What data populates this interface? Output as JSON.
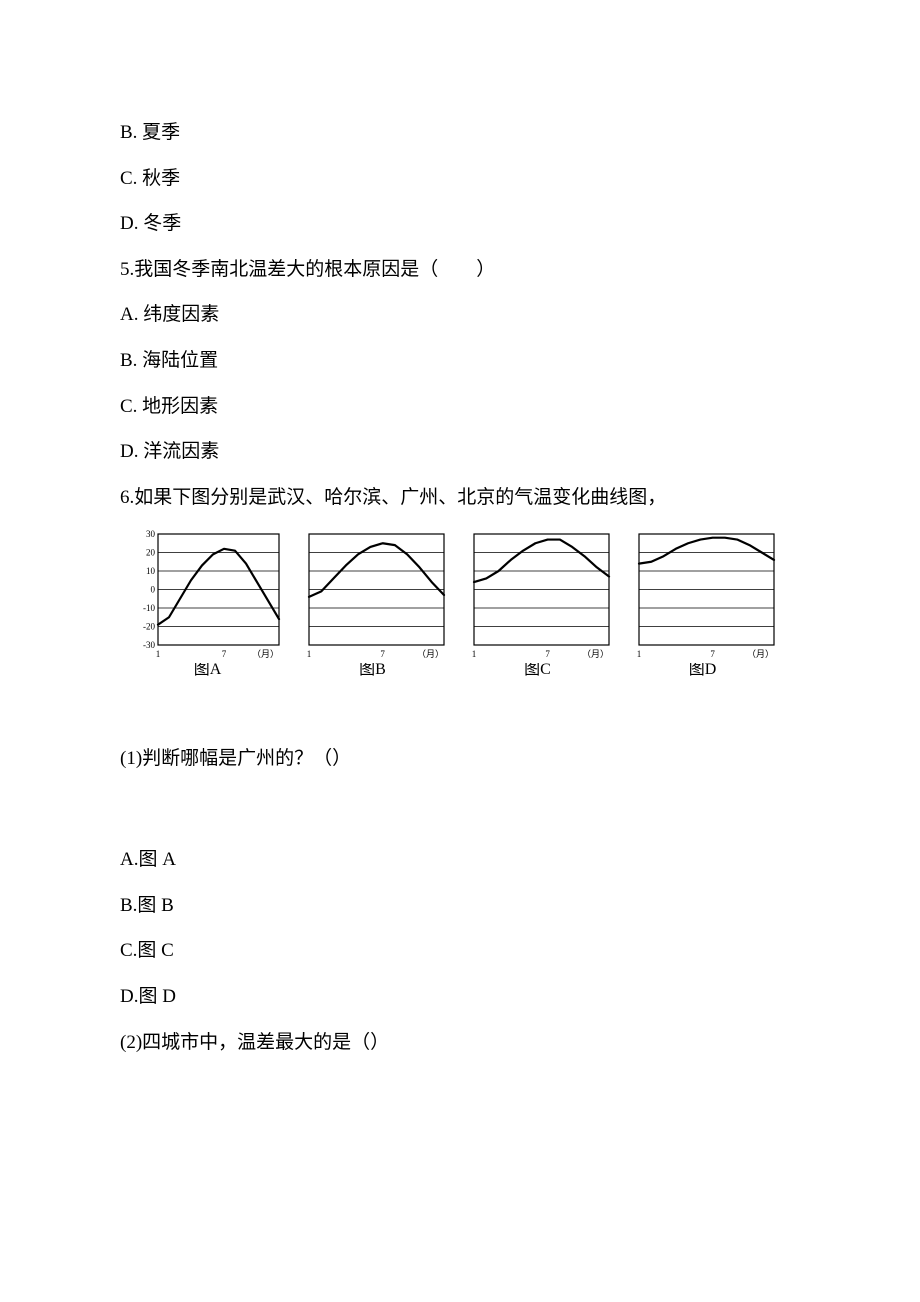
{
  "q4_options": {
    "b": "B. 夏季",
    "c": "C. 秋季",
    "d": "D. 冬季"
  },
  "q5": {
    "stem": "5.我国冬季南北温差大的根本原因是（　　）",
    "a": "A. 纬度因素",
    "b": "B. 海陆位置",
    "c": "C. 地形因素",
    "d": "D. 洋流因素"
  },
  "q6": {
    "intro": "6.如果下图分别是武汉、哈尔滨、广州、北京的气温变化曲线图，",
    "sub1": "(1)判断哪幅是广州的？（）",
    "sub1_options": {
      "a": "A.图 A",
      "b": "B.图 B",
      "c": "C.图 C",
      "d": "D.图 D"
    },
    "sub2": "(2)四城市中，温差最大的是（）"
  },
  "charts": {
    "y_ticks": [
      30,
      20,
      10,
      0,
      -10,
      -20,
      -30
    ],
    "x_start_label": "1",
    "x_mid_label": "7",
    "x_end_label": "（月）",
    "captions": {
      "a": "图A",
      "b": "图B",
      "c": "图C",
      "d": "图D"
    },
    "style": {
      "axis_color": "#000000",
      "grid_color": "#000000",
      "line_color": "#000000",
      "bg_color": "#ffffff",
      "font_size_axis": 9,
      "line_width": 2.2
    },
    "series": {
      "a": [
        {
          "x": 1,
          "y": -19
        },
        {
          "x": 2,
          "y": -15
        },
        {
          "x": 3,
          "y": -5
        },
        {
          "x": 4,
          "y": 5
        },
        {
          "x": 5,
          "y": 13
        },
        {
          "x": 6,
          "y": 19
        },
        {
          "x": 7,
          "y": 22
        },
        {
          "x": 8,
          "y": 21
        },
        {
          "x": 9,
          "y": 14
        },
        {
          "x": 10,
          "y": 4
        },
        {
          "x": 11,
          "y": -6
        },
        {
          "x": 12,
          "y": -16
        }
      ],
      "b": [
        {
          "x": 1,
          "y": -4
        },
        {
          "x": 2,
          "y": -1
        },
        {
          "x": 3,
          "y": 6
        },
        {
          "x": 4,
          "y": 13
        },
        {
          "x": 5,
          "y": 19
        },
        {
          "x": 6,
          "y": 23
        },
        {
          "x": 7,
          "y": 25
        },
        {
          "x": 8,
          "y": 24
        },
        {
          "x": 9,
          "y": 19
        },
        {
          "x": 10,
          "y": 12
        },
        {
          "x": 11,
          "y": 4
        },
        {
          "x": 12,
          "y": -3
        }
      ],
      "c": [
        {
          "x": 1,
          "y": 4
        },
        {
          "x": 2,
          "y": 6
        },
        {
          "x": 3,
          "y": 10
        },
        {
          "x": 4,
          "y": 16
        },
        {
          "x": 5,
          "y": 21
        },
        {
          "x": 6,
          "y": 25
        },
        {
          "x": 7,
          "y": 27
        },
        {
          "x": 8,
          "y": 27
        },
        {
          "x": 9,
          "y": 23
        },
        {
          "x": 10,
          "y": 18
        },
        {
          "x": 11,
          "y": 12
        },
        {
          "x": 12,
          "y": 7
        }
      ],
      "d": [
        {
          "x": 1,
          "y": 14
        },
        {
          "x": 2,
          "y": 15
        },
        {
          "x": 3,
          "y": 18
        },
        {
          "x": 4,
          "y": 22
        },
        {
          "x": 5,
          "y": 25
        },
        {
          "x": 6,
          "y": 27
        },
        {
          "x": 7,
          "y": 28
        },
        {
          "x": 8,
          "y": 28
        },
        {
          "x": 9,
          "y": 27
        },
        {
          "x": 10,
          "y": 24
        },
        {
          "x": 11,
          "y": 20
        },
        {
          "x": 12,
          "y": 16
        }
      ]
    }
  }
}
